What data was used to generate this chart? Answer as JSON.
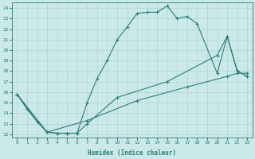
{
  "xlabel": "Humidex (Indice chaleur)",
  "xlim": [
    -0.5,
    23.5
  ],
  "ylim": [
    11.7,
    24.5
  ],
  "xticks": [
    0,
    1,
    2,
    3,
    4,
    5,
    6,
    7,
    8,
    9,
    10,
    11,
    12,
    13,
    14,
    15,
    16,
    17,
    18,
    19,
    20,
    21,
    22,
    23
  ],
  "yticks": [
    12,
    13,
    14,
    15,
    16,
    17,
    18,
    19,
    20,
    21,
    22,
    23,
    24
  ],
  "bg_color": "#cce9e9",
  "line_color": "#2d7d75",
  "grid_color": "#aed4d4",
  "line1_x": [
    0,
    1,
    2,
    3,
    4,
    5,
    6,
    7,
    8,
    9,
    10,
    11,
    12,
    13,
    14,
    15,
    16,
    17,
    18,
    20,
    21,
    22,
    23
  ],
  "line1_y": [
    15.8,
    14.4,
    13.2,
    12.2,
    12.1,
    12.1,
    12.1,
    15.0,
    17.3,
    19.0,
    21.0,
    22.2,
    23.5,
    23.6,
    23.6,
    24.2,
    23.0,
    23.2,
    22.5,
    17.8,
    21.3,
    18.0,
    17.5
  ],
  "line2_x": [
    0,
    2,
    3,
    4,
    5,
    6,
    7,
    10,
    15,
    20,
    21,
    22,
    23
  ],
  "line2_y": [
    15.8,
    13.2,
    12.2,
    12.1,
    12.1,
    12.1,
    13.0,
    15.5,
    17.0,
    19.5,
    21.3,
    18.0,
    17.5
  ],
  "line3_x": [
    0,
    3,
    7,
    12,
    17,
    21,
    22,
    23
  ],
  "line3_y": [
    15.8,
    12.2,
    13.3,
    15.2,
    16.5,
    17.5,
    17.8,
    17.8
  ]
}
